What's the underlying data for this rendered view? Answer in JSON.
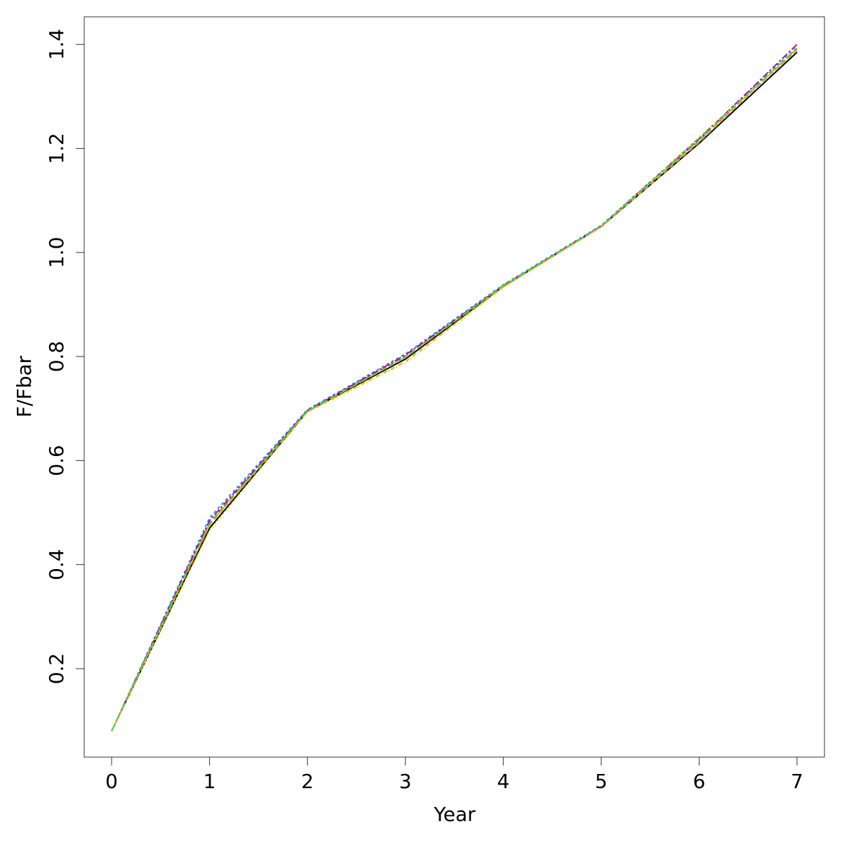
{
  "chart_data": {
    "type": "line",
    "x_label": "Year",
    "y_label": "F/Fbar",
    "x": [
      0,
      1,
      2,
      3,
      4,
      5,
      6,
      7
    ],
    "series": [
      {
        "color": "#000000",
        "values": [
          0.08,
          0.47,
          0.695,
          0.795,
          0.935,
          1.05,
          1.21,
          1.385
        ]
      },
      {
        "color": "#df536b",
        "values": [
          0.08,
          0.48,
          0.697,
          0.8,
          0.937,
          1.05,
          1.215,
          1.39
        ]
      },
      {
        "color": "#2297e6",
        "values": [
          0.08,
          0.49,
          0.698,
          0.805,
          0.938,
          1.052,
          1.22,
          1.395
        ]
      },
      {
        "color": "#9e1a8a",
        "values": [
          0.08,
          0.485,
          0.696,
          0.803,
          0.936,
          1.051,
          1.218,
          1.4
        ]
      },
      {
        "color": "#f5a623",
        "values": [
          0.08,
          0.475,
          0.694,
          0.79,
          0.934,
          1.049,
          1.212,
          1.392
        ]
      },
      {
        "color": "#e8d400",
        "values": [
          0.08,
          0.465,
          0.693,
          0.788,
          0.933,
          1.05,
          1.222,
          1.388
        ]
      },
      {
        "color": "#61d04f",
        "values": [
          0.08,
          0.478,
          0.695,
          0.798,
          0.936,
          1.05,
          1.216,
          1.393
        ]
      }
    ],
    "xlim": [
      -0.28,
      7.28
    ],
    "xticks": [
      0,
      1,
      2,
      3,
      4,
      5,
      6,
      7
    ],
    "ylim": [
      0.03,
      1.453
    ],
    "yticks": [
      {
        "value": 0.2,
        "label": "0.2"
      },
      {
        "value": 0.4,
        "label": "0.4"
      },
      {
        "value": 0.6,
        "label": "0.6"
      },
      {
        "value": 0.8,
        "label": "0.8"
      },
      {
        "value": 1.0,
        "label": "1.0"
      },
      {
        "value": 1.2,
        "label": "1.2"
      },
      {
        "value": 1.4,
        "label": "1.4"
      }
    ],
    "grid": false
  }
}
